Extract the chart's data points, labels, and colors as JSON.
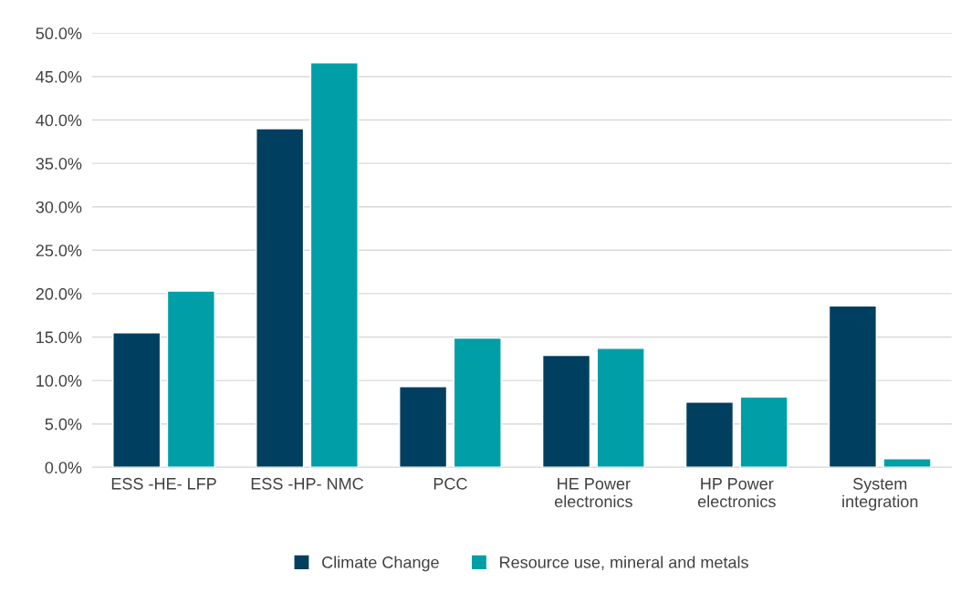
{
  "chart_data": {
    "type": "bar",
    "categories": [
      "ESS -HE- LFP",
      "ESS -HP- NMC",
      "PCC",
      "HE Power\nelectronics",
      "HP Power\nelectronics",
      "System\nintegration"
    ],
    "series": [
      {
        "name": "Climate Change",
        "color": "#003f5f",
        "values": [
          15.5,
          39.0,
          9.3,
          12.9,
          7.5,
          18.6
        ]
      },
      {
        "name": "Resource use, mineral and metals",
        "color": "#009fa8",
        "values": [
          20.3,
          46.6,
          14.9,
          13.7,
          8.1,
          1.0
        ]
      }
    ],
    "ylim": [
      0,
      50
    ],
    "yticks": [
      {
        "value": 0,
        "label": "0.0%"
      },
      {
        "value": 5,
        "label": "5.0%"
      },
      {
        "value": 10,
        "label": "10.0%"
      },
      {
        "value": 15,
        "label": "15.0%"
      },
      {
        "value": 20,
        "label": "20.0%"
      },
      {
        "value": 25,
        "label": "25.0%"
      },
      {
        "value": 30,
        "label": "30.0%"
      },
      {
        "value": 35,
        "label": "35.0%"
      },
      {
        "value": 40,
        "label": "40.0%"
      },
      {
        "value": 45,
        "label": "45.0%"
      },
      {
        "value": 50,
        "label": "50.0%"
      }
    ],
    "grid": "y",
    "legend": "bottom"
  }
}
